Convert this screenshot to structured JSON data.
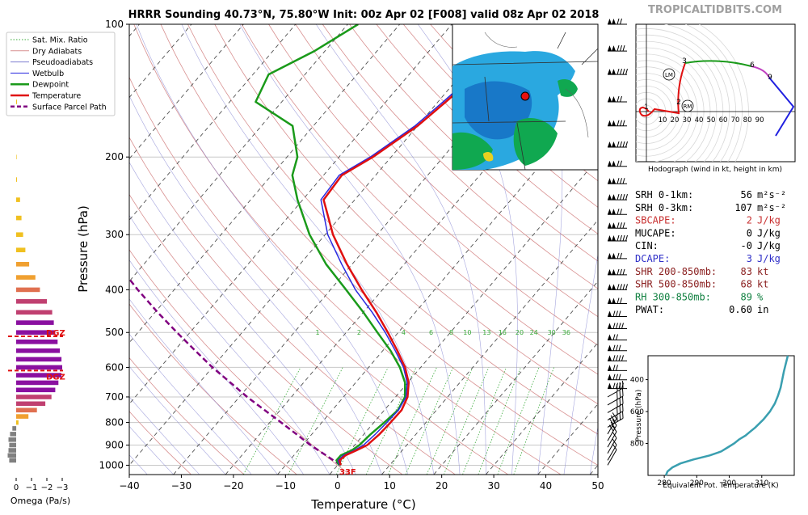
{
  "title": "HRRR Sounding 40.73°N, 75.80°W Init: 00z Apr 02 [F008] valid 08z Apr 02 2018",
  "site": "TROPICALTIDBITS.COM",
  "legend": [
    "Sat. Mix. Ratio",
    "Dry Adiabats",
    "Pseudoadiabats",
    "Wetbulb",
    "Dewpoint",
    "Temperature",
    "Surface Parcel Path"
  ],
  "colors": {
    "temperature": "#e01010",
    "dewpoint": "#1a9a1a",
    "wetbulb": "#2a2ae0",
    "parcel": "#800080",
    "dry_adiabat": "#d89090",
    "pseudoadiabat": "#8080d0",
    "mixing_ratio": "#3aaa3a",
    "isotherm": "#505050"
  },
  "chart_data": {
    "type": "skew-t",
    "xlabel": "Temperature (°C)",
    "ylabel": "Pressure (hPa)",
    "xlim": [
      -40,
      50
    ],
    "ylim": [
      1050,
      100
    ],
    "x_ticks": [
      "−40",
      "−30",
      "−20",
      "−10",
      "0",
      "10",
      "20",
      "30",
      "40",
      "50"
    ],
    "y_ticks": [
      "100",
      "200",
      "300",
      "400",
      "500",
      "600",
      "700",
      "800",
      "900",
      "1000"
    ],
    "mixing_ratio_labels": [
      "1",
      "2",
      "4",
      "6",
      "8",
      "10",
      "13",
      "16",
      "20",
      "24",
      "30",
      "36"
    ],
    "surface_label": "33F",
    "temperature": [
      [
        1000,
        0.6
      ],
      [
        975,
        -0.4
      ],
      [
        950,
        -0.1
      ],
      [
        925,
        1.2
      ],
      [
        900,
        2.4
      ],
      [
        850,
        3.0
      ],
      [
        800,
        3.2
      ],
      [
        750,
        3.3
      ],
      [
        700,
        2.3
      ],
      [
        650,
        0.2
      ],
      [
        600,
        -3.0
      ],
      [
        550,
        -7.2
      ],
      [
        500,
        -12.0
      ],
      [
        450,
        -17.5
      ],
      [
        400,
        -24.0
      ],
      [
        350,
        -31.0
      ],
      [
        300,
        -38.5
      ],
      [
        250,
        -46.0
      ],
      [
        220,
        -46.5
      ],
      [
        200,
        -43.5
      ],
      [
        170,
        -40.0
      ],
      [
        150,
        -38.5
      ],
      [
        130,
        -37.0
      ],
      [
        115,
        -36.0
      ],
      [
        100,
        -35.5
      ]
    ],
    "wetbulb": [
      [
        1000,
        0.4
      ],
      [
        975,
        -0.7
      ],
      [
        950,
        -0.5
      ],
      [
        925,
        0.8
      ],
      [
        900,
        1.7
      ],
      [
        850,
        2.2
      ],
      [
        800,
        2.5
      ],
      [
        750,
        2.7
      ],
      [
        700,
        2.0
      ],
      [
        650,
        -0.1
      ],
      [
        600,
        -3.3
      ],
      [
        550,
        -7.6
      ],
      [
        500,
        -12.5
      ],
      [
        450,
        -18.3
      ],
      [
        400,
        -25.2
      ],
      [
        350,
        -32.0
      ],
      [
        300,
        -39.5
      ],
      [
        250,
        -46.5
      ],
      [
        220,
        -47.0
      ],
      [
        200,
        -44.0
      ],
      [
        170,
        -40.5
      ],
      [
        150,
        -39.0
      ],
      [
        130,
        -37.5
      ],
      [
        115,
        -36.5
      ],
      [
        100,
        -36.0
      ]
    ],
    "dewpoint": [
      [
        1000,
        0.3
      ],
      [
        975,
        -1.0
      ],
      [
        950,
        -1.0
      ],
      [
        925,
        0.3
      ],
      [
        900,
        0.9
      ],
      [
        850,
        1.3
      ],
      [
        800,
        2.0
      ],
      [
        750,
        2.6
      ],
      [
        700,
        1.8
      ],
      [
        650,
        -0.5
      ],
      [
        600,
        -4.0
      ],
      [
        550,
        -8.5
      ],
      [
        500,
        -14.0
      ],
      [
        450,
        -20.0
      ],
      [
        400,
        -27.0
      ],
      [
        350,
        -35.0
      ],
      [
        300,
        -43.0
      ],
      [
        250,
        -51.0
      ],
      [
        220,
        -56.0
      ],
      [
        200,
        -58.0
      ],
      [
        170,
        -64.0
      ],
      [
        150,
        -75.0
      ],
      [
        130,
        -77.0
      ],
      [
        115,
        -72.0
      ],
      [
        100,
        -68.0
      ]
    ],
    "parcel": [
      [
        1000,
        0.6
      ],
      [
        950,
        -3.8
      ],
      [
        900,
        -8.5
      ],
      [
        850,
        -13.0
      ],
      [
        800,
        -17.8
      ],
      [
        750,
        -23.0
      ],
      [
        700,
        -28.5
      ],
      [
        650,
        -34.0
      ],
      [
        600,
        -40.0
      ],
      [
        550,
        -46.0
      ],
      [
        500,
        -52.5
      ],
      [
        450,
        -59.5
      ],
      [
        400,
        -67.0
      ],
      [
        350,
        -75.0
      ],
      [
        300,
        -83.5
      ],
      [
        275,
        -88.0
      ]
    ],
    "dgz_layers": [
      {
        "label": "DGZ",
        "p": 510
      },
      {
        "label": "DGZ",
        "p": 610
      }
    ]
  },
  "omega": {
    "xlabel": "Omega (Pa/s)",
    "x_ticks": [
      "0",
      "−1",
      "−2",
      "−3"
    ],
    "bars": [
      {
        "p": 150,
        "v": -0.05
      },
      {
        "p": 200,
        "v": -0.03
      },
      {
        "p": 225,
        "v": -0.05
      },
      {
        "p": 250,
        "v": -0.25
      },
      {
        "p": 275,
        "v": -0.35
      },
      {
        "p": 300,
        "v": -0.45
      },
      {
        "p": 325,
        "v": -0.6
      },
      {
        "p": 350,
        "v": -0.85
      },
      {
        "p": 375,
        "v": -1.25
      },
      {
        "p": 400,
        "v": -1.55
      },
      {
        "p": 425,
        "v": -2.0
      },
      {
        "p": 450,
        "v": -2.35
      },
      {
        "p": 475,
        "v": -2.45
      },
      {
        "p": 500,
        "v": -2.55
      },
      {
        "p": 525,
        "v": -2.7
      },
      {
        "p": 550,
        "v": -2.85
      },
      {
        "p": 575,
        "v": -2.95
      },
      {
        "p": 600,
        "v": -3.0
      },
      {
        "p": 625,
        "v": -2.95
      },
      {
        "p": 650,
        "v": -2.75
      },
      {
        "p": 675,
        "v": -2.55
      },
      {
        "p": 700,
        "v": -2.3
      },
      {
        "p": 725,
        "v": -1.9
      },
      {
        "p": 750,
        "v": -1.35
      },
      {
        "p": 775,
        "v": -0.8
      },
      {
        "p": 800,
        "v": -0.15
      },
      {
        "p": 825,
        "v": 0.25
      },
      {
        "p": 850,
        "v": 0.4
      },
      {
        "p": 875,
        "v": 0.5
      },
      {
        "p": 900,
        "v": 0.45
      },
      {
        "p": 925,
        "v": 0.5
      },
      {
        "p": 950,
        "v": 0.55
      },
      {
        "p": 975,
        "v": 0.45
      }
    ]
  },
  "hodograph": {
    "caption": "Hodograph (wind in kt, height in km)",
    "ring_labels": [
      "10",
      "20",
      "30",
      "40",
      "50",
      "60",
      "70",
      "80",
      "90"
    ],
    "km_labels": [
      "1",
      "2",
      "3",
      "6",
      "9"
    ],
    "markers": [
      "LM",
      "RM"
    ]
  },
  "indices": [
    {
      "name": "SRH 0-1km:",
      "value": "56",
      "unit": "m²s⁻²",
      "color": "#000000"
    },
    {
      "name": "SRH 0-3km:",
      "value": "107",
      "unit": "m²s⁻²",
      "color": "#000000"
    },
    {
      "name": "SBCAPE:",
      "value": "2",
      "unit": "J/kg",
      "color": "#c83030"
    },
    {
      "name": "MUCAPE:",
      "value": "0",
      "unit": "J/kg",
      "color": "#000000"
    },
    {
      "name": "CIN:",
      "value": "-0",
      "unit": "J/kg",
      "color": "#000000"
    },
    {
      "name": "DCAPE:",
      "value": "3",
      "unit": "J/kg",
      "color": "#3030c8"
    },
    {
      "name": "SHR 200-850mb:",
      "value": "83",
      "unit": "kt",
      "color": "#8b2020"
    },
    {
      "name": "SHR 500-850mb:",
      "value": "68",
      "unit": "kt",
      "color": "#8b2020"
    },
    {
      "name": "RH 300-850mb:",
      "value": "89",
      "unit": "%",
      "color": "#108040"
    },
    {
      "name": "PWAT:",
      "value": "0.60",
      "unit": "in",
      "color": "#000000"
    }
  ],
  "theta_e": {
    "xlabel": "Equivalent Pot. Temperature (K)",
    "ylabel": "Pressure (hPa)",
    "x_ticks": [
      "280",
      "290",
      "300",
      "310"
    ],
    "y_ticks": [
      "400",
      "600",
      "800"
    ],
    "xlim": [
      275,
      320
    ],
    "ylim": [
      1000,
      250
    ],
    "profile": [
      [
        1000,
        280.5
      ],
      [
        975,
        281.0
      ],
      [
        950,
        282.5
      ],
      [
        925,
        285.0
      ],
      [
        900,
        289.0
      ],
      [
        875,
        294.0
      ],
      [
        850,
        297.5
      ],
      [
        825,
        299.5
      ],
      [
        800,
        301.5
      ],
      [
        775,
        303.0
      ],
      [
        750,
        305.0
      ],
      [
        725,
        306.5
      ],
      [
        700,
        308.0
      ],
      [
        650,
        310.5
      ],
      [
        600,
        312.5
      ],
      [
        550,
        314.0
      ],
      [
        500,
        315.0
      ],
      [
        450,
        315.8
      ],
      [
        400,
        316.3
      ],
      [
        350,
        316.8
      ],
      [
        300,
        317.4
      ],
      [
        250,
        318.0
      ]
    ]
  }
}
